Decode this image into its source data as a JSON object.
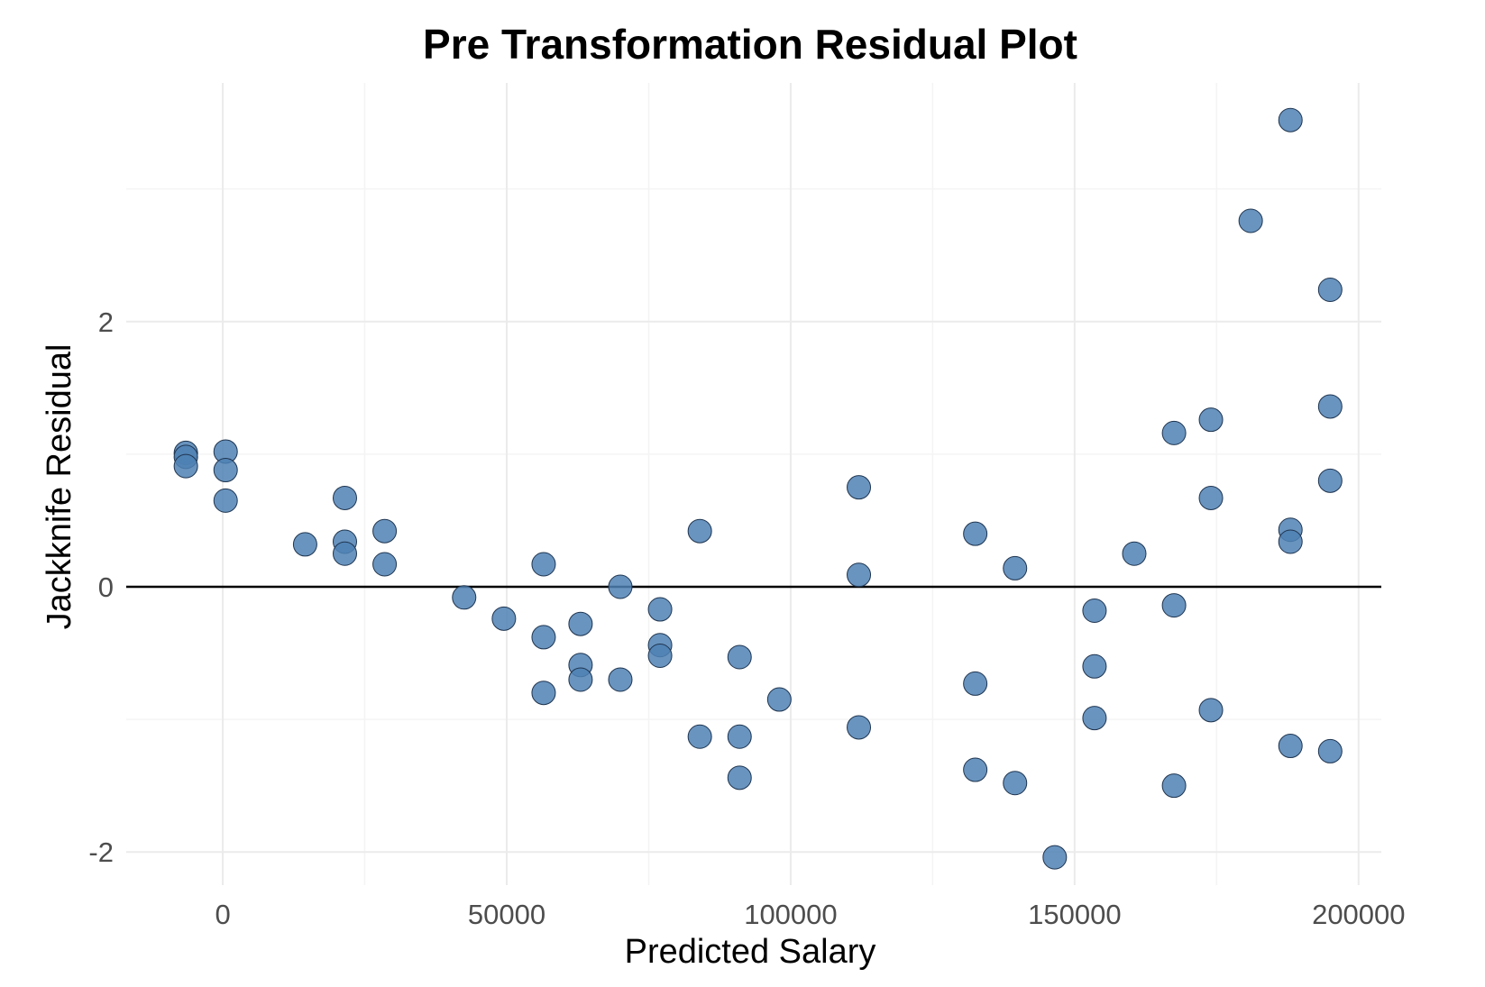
{
  "chart_data": {
    "type": "scatter",
    "title": "Pre Transformation Residual Plot",
    "xlabel": "Predicted Salary",
    "ylabel": "Jackknife Residual",
    "xlim": [
      -17000,
      204000
    ],
    "ylim": [
      -2.25,
      3.8
    ],
    "x_major_ticks": [
      0,
      50000,
      100000,
      150000,
      200000
    ],
    "x_tick_labels": [
      "0",
      "50000",
      "100000",
      "150000",
      "200000"
    ],
    "x_minor_ticks": [
      25000,
      75000,
      125000,
      175000
    ],
    "y_major_ticks": [
      -2,
      0,
      2
    ],
    "y_tick_labels": [
      "-2",
      "0",
      "2"
    ],
    "y_minor_ticks": [
      -1,
      1,
      3
    ],
    "grid": true,
    "reference_line_y": 0,
    "point_color": "#4f81b4",
    "point_stroke": "#1f3550",
    "points": [
      {
        "x": -6500,
        "y": 1.01
      },
      {
        "x": -6500,
        "y": 0.98
      },
      {
        "x": -6500,
        "y": 0.91
      },
      {
        "x": 500,
        "y": 1.02
      },
      {
        "x": 500,
        "y": 0.88
      },
      {
        "x": 500,
        "y": 0.65
      },
      {
        "x": 14500,
        "y": 0.32
      },
      {
        "x": 21500,
        "y": 0.67
      },
      {
        "x": 21500,
        "y": 0.34
      },
      {
        "x": 21500,
        "y": 0.25
      },
      {
        "x": 28500,
        "y": 0.42
      },
      {
        "x": 28500,
        "y": 0.17
      },
      {
        "x": 42500,
        "y": -0.08
      },
      {
        "x": 49500,
        "y": -0.24
      },
      {
        "x": 56500,
        "y": 0.17
      },
      {
        "x": 56500,
        "y": -0.38
      },
      {
        "x": 56500,
        "y": -0.8
      },
      {
        "x": 63000,
        "y": -0.28
      },
      {
        "x": 63000,
        "y": -0.59
      },
      {
        "x": 63000,
        "y": -0.7
      },
      {
        "x": 70000,
        "y": 0.0
      },
      {
        "x": 70000,
        "y": -0.7
      },
      {
        "x": 77000,
        "y": -0.17
      },
      {
        "x": 77000,
        "y": -0.44
      },
      {
        "x": 77000,
        "y": -0.52
      },
      {
        "x": 84000,
        "y": 0.42
      },
      {
        "x": 84000,
        "y": -1.13
      },
      {
        "x": 91000,
        "y": -0.53
      },
      {
        "x": 91000,
        "y": -1.13
      },
      {
        "x": 91000,
        "y": -1.44
      },
      {
        "x": 98000,
        "y": -0.85
      },
      {
        "x": 112000,
        "y": 0.75
      },
      {
        "x": 112000,
        "y": 0.09
      },
      {
        "x": 112000,
        "y": -1.06
      },
      {
        "x": 132500,
        "y": 0.4
      },
      {
        "x": 132500,
        "y": -0.73
      },
      {
        "x": 132500,
        "y": -1.38
      },
      {
        "x": 139500,
        "y": 0.14
      },
      {
        "x": 139500,
        "y": -1.48
      },
      {
        "x": 146500,
        "y": -2.04
      },
      {
        "x": 153500,
        "y": -0.18
      },
      {
        "x": 153500,
        "y": -0.6
      },
      {
        "x": 153500,
        "y": -0.99
      },
      {
        "x": 160500,
        "y": 0.25
      },
      {
        "x": 167500,
        "y": 1.16
      },
      {
        "x": 167500,
        "y": -0.14
      },
      {
        "x": 167500,
        "y": -1.5
      },
      {
        "x": 174000,
        "y": 1.26
      },
      {
        "x": 174000,
        "y": 0.67
      },
      {
        "x": 174000,
        "y": -0.93
      },
      {
        "x": 181000,
        "y": 2.76
      },
      {
        "x": 188000,
        "y": 3.52
      },
      {
        "x": 188000,
        "y": 0.43
      },
      {
        "x": 188000,
        "y": 0.34
      },
      {
        "x": 188000,
        "y": -1.2
      },
      {
        "x": 195000,
        "y": 2.24
      },
      {
        "x": 195000,
        "y": 1.36
      },
      {
        "x": 195000,
        "y": 0.8
      },
      {
        "x": 195000,
        "y": -1.24
      }
    ]
  }
}
